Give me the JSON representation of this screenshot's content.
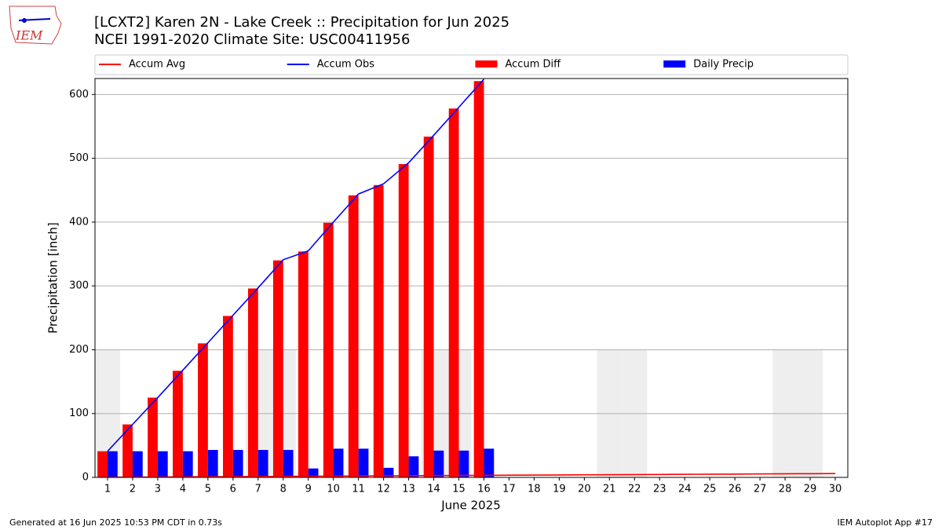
{
  "chart_data": {
    "type": "bar",
    "title": "[LCXT2] Karen 2N - Lake Creek :: Precipitation for Jun 2025",
    "subtitle": "NCEI 1991-2020 Climate Site: USC00411956",
    "ylabel": "Precipitation [inch]",
    "xlabel": "June 2025",
    "footer_left": "Generated at 16 Jun 2025 10:53 PM CDT in 0.73s",
    "footer_right": "IEM Autoplot App #17",
    "logo_text": "IEM",
    "categories": [
      "1",
      "2",
      "3",
      "4",
      "5",
      "6",
      "7",
      "8",
      "9",
      "10",
      "11",
      "12",
      "13",
      "14",
      "15",
      "16",
      "17",
      "18",
      "19",
      "20",
      "21",
      "22",
      "23",
      "24",
      "25",
      "26",
      "27",
      "28",
      "29",
      "30"
    ],
    "ylim": [
      0,
      625
    ],
    "yticks": [
      0,
      100,
      200,
      300,
      400,
      500,
      600
    ],
    "grid": true,
    "shade": {
      "categories": [
        "1",
        "7",
        "8",
        "14",
        "15",
        "21",
        "22",
        "28",
        "29"
      ],
      "top": 200,
      "color": "#eeeeee"
    },
    "series": [
      {
        "name": "Accum Avg",
        "type": "line",
        "color": "#ff0000",
        "values": [
          0.2,
          0.4,
          0.6,
          0.8,
          1.0,
          1.2,
          1.4,
          1.6,
          1.8,
          2.0,
          2.2,
          2.4,
          2.6,
          2.8,
          3.0,
          3.2,
          3.4,
          3.6,
          3.8,
          4.0,
          4.2,
          4.4,
          4.6,
          4.8,
          5.0,
          5.2,
          5.4,
          5.6,
          5.8,
          6.0
        ]
      },
      {
        "name": "Accum Obs",
        "type": "line",
        "color": "#0000ff",
        "values": [
          41,
          83,
          125,
          168,
          211,
          254,
          297,
          341,
          355,
          400,
          444,
          460,
          493,
          536,
          580,
          624,
          null,
          null,
          null,
          null,
          null,
          null,
          null,
          null,
          null,
          null,
          null,
          null,
          null,
          null
        ]
      },
      {
        "name": "Accum Diff",
        "type": "bar",
        "color": "#ff0000",
        "values": [
          41,
          83,
          125,
          167,
          210,
          253,
          296,
          340,
          354,
          399,
          442,
          458,
          491,
          534,
          578,
          621,
          null,
          null,
          null,
          null,
          null,
          null,
          null,
          null,
          null,
          null,
          null,
          null,
          null,
          null
        ]
      },
      {
        "name": "Daily Precip",
        "type": "bar",
        "color": "#0000ff",
        "values": [
          41,
          41,
          41,
          41,
          43,
          43,
          43,
          43,
          14,
          45,
          45,
          15,
          33,
          42,
          42,
          45,
          null,
          null,
          null,
          null,
          null,
          null,
          null,
          null,
          null,
          null,
          null,
          null,
          null,
          null
        ]
      }
    ]
  }
}
